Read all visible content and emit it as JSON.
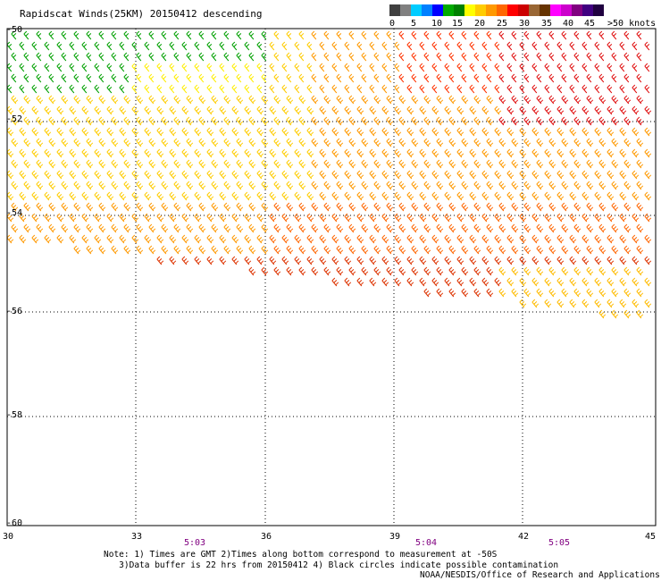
{
  "title": "Rapidscat Winds(25KM) 20150412 descending",
  "legend": {
    "unit_label": ">50 knots",
    "ticks": [
      "0",
      "5",
      "10",
      "15",
      "20",
      "25",
      "30",
      "35",
      "40",
      "45"
    ],
    "colors": [
      "#404040",
      "#808080",
      "#00ccff",
      "#0080ff",
      "#0000ff",
      "#00aa00",
      "#008000",
      "#ffff00",
      "#ffcc00",
      "#ff9900",
      "#ff6600",
      "#ff0000",
      "#cc0000",
      "#996633",
      "#663300",
      "#ff00ff",
      "#cc00cc",
      "#800080",
      "#400080",
      "#200040"
    ]
  },
  "map": {
    "lon_ticks": [
      "30",
      "33",
      "36",
      "39",
      "42",
      "45"
    ],
    "lat_ticks": [
      "-50",
      "-52",
      "-54",
      "-56",
      "-58",
      "-60"
    ],
    "time_labels": [
      "5:03",
      "5:04",
      "5:05"
    ]
  },
  "notes": {
    "line1": "Note: 1) Times are GMT 2)Times along bottom correspond to measurement at -50S",
    "line2": "3)Data buffer is 22 hrs from 20150412 4) Black circles indicate possible contamination",
    "credit": "NOAA/NESDIS/Office of Research and Applications"
  }
}
